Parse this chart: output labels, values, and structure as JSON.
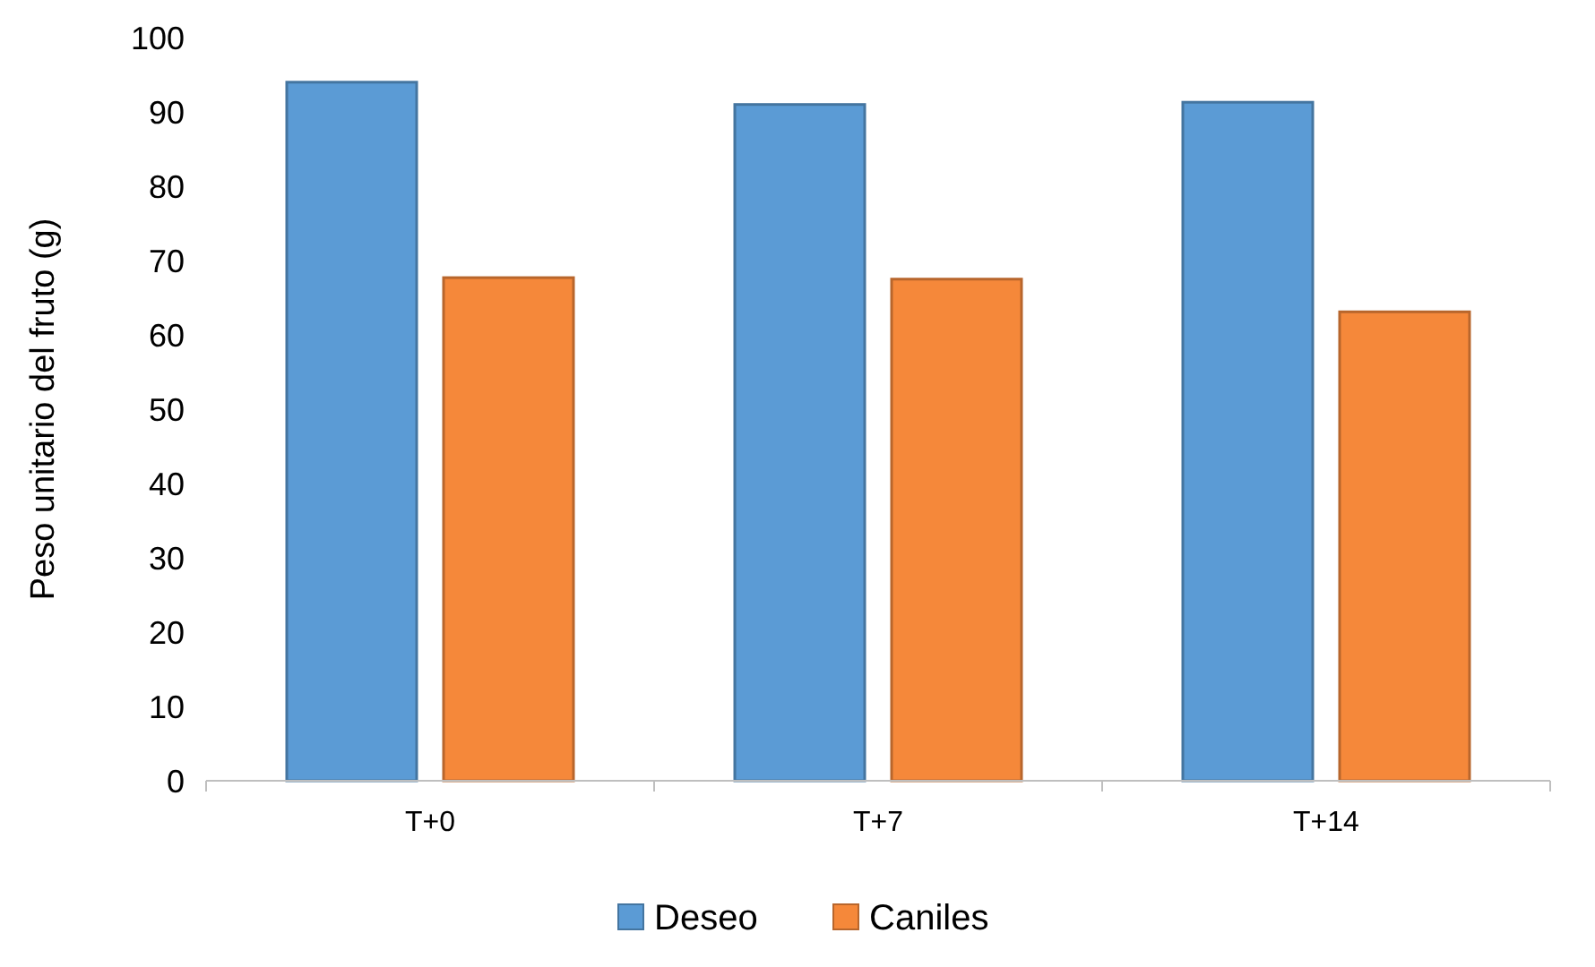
{
  "chart_data": {
    "type": "bar",
    "ylabel": "Peso unitario del fruto (g)",
    "categories": [
      "T+0",
      "T+7",
      "T+14"
    ],
    "series": [
      {
        "name": "Deseo",
        "color": "#5b9bd5",
        "values": [
          94,
          91,
          91.3
        ]
      },
      {
        "name": "Caniles",
        "color": "#f5883a",
        "values": [
          67.7,
          67.5,
          63.1
        ]
      }
    ],
    "ylim": [
      0,
      100
    ],
    "yticks": [
      0,
      10,
      20,
      30,
      40,
      50,
      60,
      70,
      80,
      90,
      100
    ],
    "grid": false,
    "legend": "bottom"
  }
}
